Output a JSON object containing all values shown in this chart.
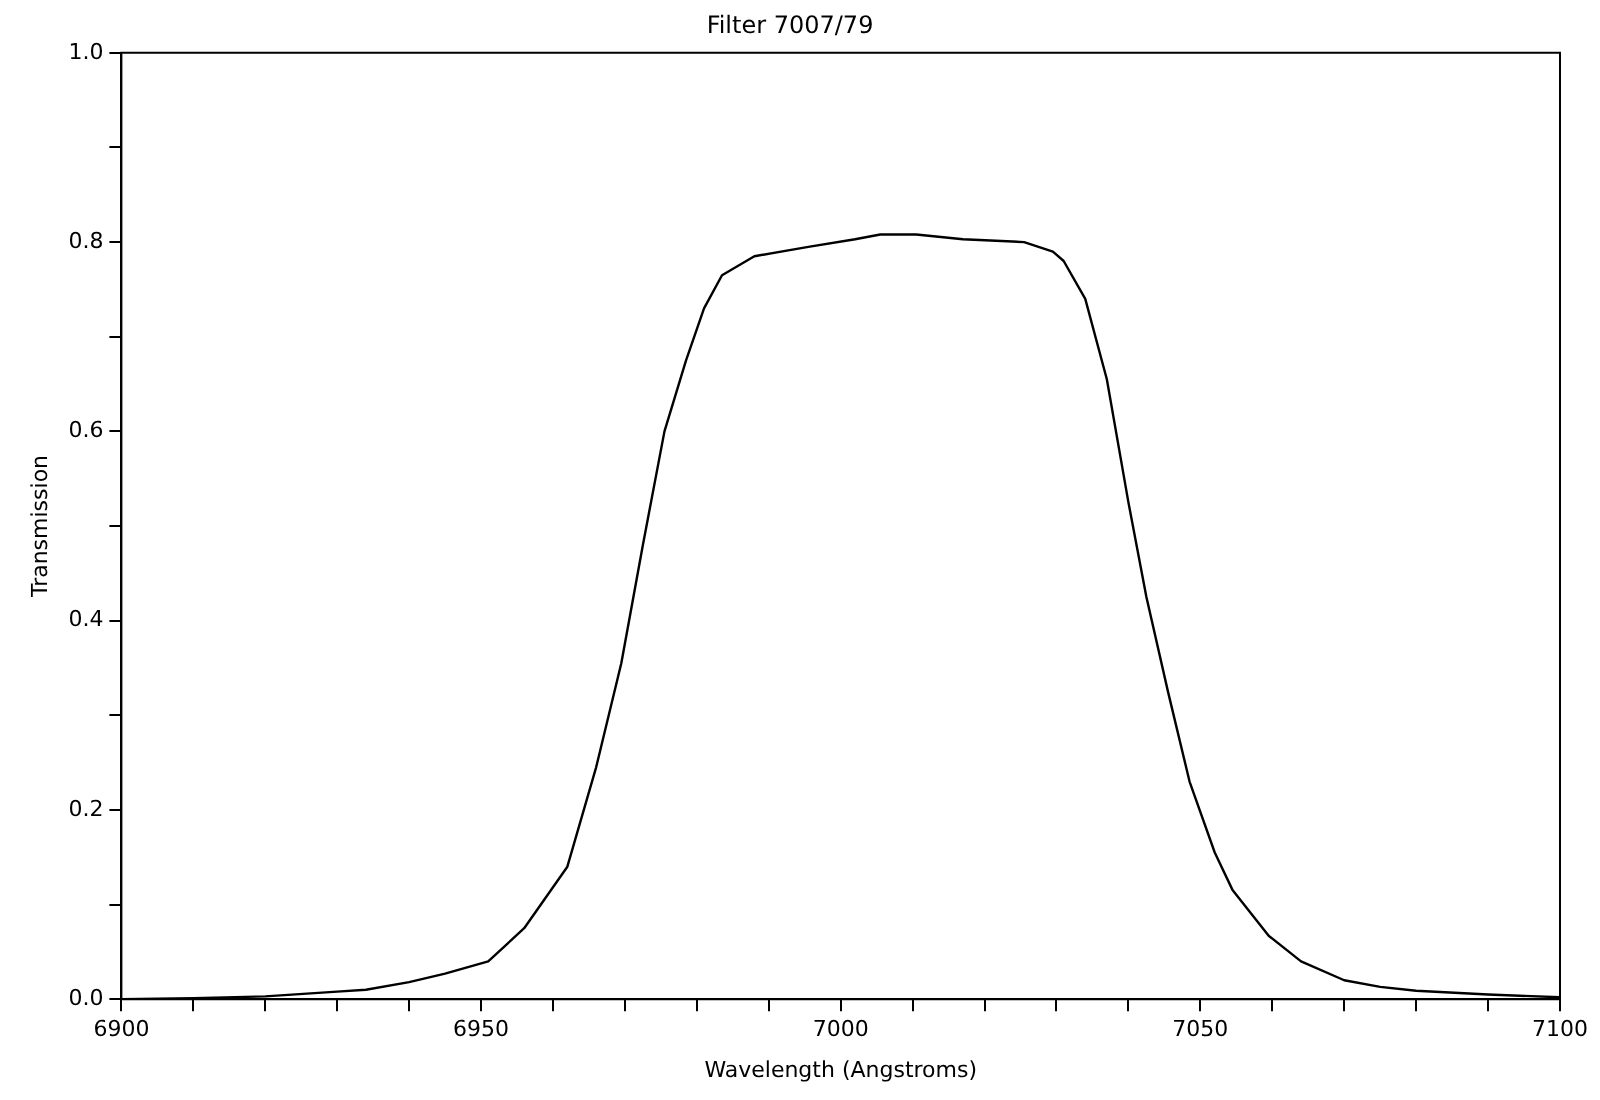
{
  "chart_data": {
    "type": "line",
    "title": "Filter 7007/79",
    "xlabel": "Wavelength (Angstroms)",
    "ylabel": "Transmission",
    "xlim": [
      6900,
      7100
    ],
    "xticks": [
      6900,
      {
        "value": 6910,
        "label": null
      },
      {
        "value": 6920,
        "label": null
      },
      {
        "value": 6930,
        "label": null
      },
      {
        "value": 6940,
        "label": null
      },
      6950,
      {
        "value": 6960,
        "label": null
      },
      {
        "value": 6970,
        "label": null
      },
      {
        "value": 6980,
        "label": null
      },
      {
        "value": 6990,
        "label": null
      },
      7000,
      {
        "value": 7010,
        "label": null
      },
      {
        "value": 7020,
        "label": null
      },
      {
        "value": 7030,
        "label": null
      },
      {
        "value": 7040,
        "label": null
      },
      7050,
      {
        "value": 7060,
        "label": null
      },
      {
        "value": 7070,
        "label": null
      },
      {
        "value": 7080,
        "label": null
      },
      {
        "value": 7090,
        "label": null
      },
      7100
    ],
    "ylim": [
      0,
      1
    ],
    "yticks": [
      {
        "value": 0,
        "label": "0.0"
      },
      {
        "value": 0.1,
        "label": null
      },
      0.2,
      {
        "value": 0.3,
        "label": null
      },
      0.4,
      {
        "value": 0.5,
        "label": null
      },
      0.6,
      {
        "value": 0.7,
        "label": null
      },
      0.8,
      {
        "value": 0.9,
        "label": null
      },
      {
        "value": 1,
        "label": "1.0"
      }
    ],
    "grid": false,
    "legend": false,
    "marker": "none",
    "line_style": "solid",
    "series": [
      {
        "color": "#000000",
        "x": [
          6900,
          6910,
          6920,
          6930,
          6934,
          6940,
          6945,
          6951,
          6956,
          6962,
          6966,
          6969.5,
          6972.5,
          6975.5,
          6978.5,
          6981,
          6983.5,
          6988,
          6995.5,
          7002,
          7005.5,
          7010.5,
          7017,
          7025.5,
          7029.5,
          7031,
          7034,
          7037,
          7040,
          7042.5,
          7045.5,
          7048.5,
          7052,
          7054.5,
          7059.5,
          7064,
          7070,
          7075,
          7080,
          7090,
          7100
        ],
        "values": [
          0.0,
          0.001,
          0.003,
          0.008,
          0.01,
          0.018,
          0.027,
          0.04,
          0.075,
          0.14,
          0.245,
          0.355,
          0.48,
          0.6,
          0.675,
          0.73,
          0.765,
          0.785,
          0.795,
          0.803,
          0.808,
          0.808,
          0.803,
          0.8,
          0.79,
          0.78,
          0.74,
          0.655,
          0.525,
          0.425,
          0.325,
          0.23,
          0.155,
          0.115,
          0.067,
          0.04,
          0.02,
          0.013,
          0.009,
          0.005,
          0.002
        ]
      }
    ]
  }
}
